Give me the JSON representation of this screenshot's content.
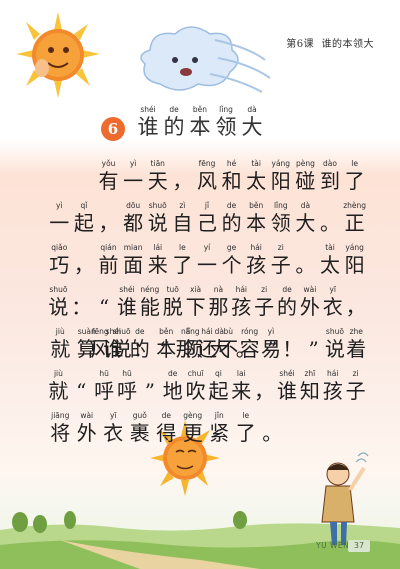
{
  "header": {
    "lesson_label": "第6课",
    "lesson_title": "谁的本领大"
  },
  "title": {
    "number": "6",
    "chars": [
      {
        "py": "shéi",
        "hz": "谁"
      },
      {
        "py": "de",
        "hz": "的"
      },
      {
        "py": "běn",
        "hz": "本"
      },
      {
        "py": "lǐng",
        "hz": "领"
      },
      {
        "py": "dà",
        "hz": "大"
      }
    ]
  },
  "paragraphs": [
    {
      "lines": [
        [
          {
            "py": "",
            "hz": ""
          },
          {
            "py": "",
            "hz": ""
          },
          {
            "py": "yǒu",
            "hz": "有"
          },
          {
            "py": "yì",
            "hz": "一"
          },
          {
            "py": "tiān",
            "hz": "天"
          },
          {
            "py": "",
            "hz": "，"
          },
          {
            "py": "fēng",
            "hz": "风"
          },
          {
            "py": "hé",
            "hz": "和"
          },
          {
            "py": "tài",
            "hz": "太"
          },
          {
            "py": "yáng",
            "hz": "阳"
          },
          {
            "py": "pèng",
            "hz": "碰"
          },
          {
            "py": "dào",
            "hz": "到"
          },
          {
            "py": "le",
            "hz": "了"
          }
        ],
        [
          {
            "py": "yì",
            "hz": "一"
          },
          {
            "py": "qǐ",
            "hz": "起"
          },
          {
            "py": "",
            "hz": "，"
          },
          {
            "py": "dōu",
            "hz": "都"
          },
          {
            "py": "shuō",
            "hz": "说"
          },
          {
            "py": "zì",
            "hz": "自"
          },
          {
            "py": "jǐ",
            "hz": "己"
          },
          {
            "py": "de",
            "hz": "的"
          },
          {
            "py": "běn",
            "hz": "本"
          },
          {
            "py": "lǐng",
            "hz": "领"
          },
          {
            "py": "dà",
            "hz": "大"
          },
          {
            "py": "",
            "hz": "。"
          },
          {
            "py": "zhèng",
            "hz": "正"
          }
        ],
        [
          {
            "py": "qiǎo",
            "hz": "巧"
          },
          {
            "py": "",
            "hz": "，"
          },
          {
            "py": "qián",
            "hz": "前"
          },
          {
            "py": "mian",
            "hz": "面"
          },
          {
            "py": "lái",
            "hz": "来"
          },
          {
            "py": "le",
            "hz": "了"
          },
          {
            "py": "yí",
            "hz": "一"
          },
          {
            "py": "ge",
            "hz": "个"
          },
          {
            "py": "hái",
            "hz": "孩"
          },
          {
            "py": "zi",
            "hz": "子"
          },
          {
            "py": "",
            "hz": "。"
          },
          {
            "py": "tài",
            "hz": "太"
          },
          {
            "py": "yáng",
            "hz": "阳"
          }
        ],
        [
          {
            "py": "shuō",
            "hz": "说"
          },
          {
            "py": "",
            "hz": "："
          },
          {
            "py": "",
            "hz": "“"
          },
          {
            "py": "shéi",
            "hz": "谁"
          },
          {
            "py": "néng",
            "hz": "能"
          },
          {
            "py": "tuō",
            "hz": "脱"
          },
          {
            "py": "xià",
            "hz": "下"
          },
          {
            "py": "nà",
            "hz": "那"
          },
          {
            "py": "hái",
            "hz": "孩"
          },
          {
            "py": "zi",
            "hz": "子"
          },
          {
            "py": "de",
            "hz": "的"
          },
          {
            "py": "wài",
            "hz": "外"
          },
          {
            "py": "yī",
            "hz": "衣"
          },
          {
            "py": "",
            "hz": "，"
          }
        ],
        [
          {
            "py": "jiù",
            "hz": "就"
          },
          {
            "py": "suàn",
            "hz": "算"
          },
          {
            "py": "shéi",
            "hz": "谁"
          },
          {
            "py": "de",
            "hz": "的"
          },
          {
            "py": "běn",
            "hz": "本"
          },
          {
            "py": "lǐng",
            "hz": "领"
          },
          {
            "py": "dà",
            "hz": "大"
          },
          {
            "py": "",
            "hz": "。"
          },
          {
            "py": "",
            "hz": "”"
          }
        ]
      ]
    },
    {
      "lines": [
        [
          {
            "py": "",
            "hz": ""
          },
          {
            "py": "",
            "hz": ""
          },
          {
            "py": "fēng",
            "hz": "风"
          },
          {
            "py": "shuō",
            "hz": "说"
          },
          {
            "py": "",
            "hz": "："
          },
          {
            "py": "",
            "hz": "“"
          },
          {
            "py": "nà",
            "hz": "那"
          },
          {
            "py": "hái",
            "hz": "还"
          },
          {
            "py": "bù",
            "hz": "不"
          },
          {
            "py": "róng",
            "hz": "容"
          },
          {
            "py": "yì",
            "hz": "易"
          },
          {
            "py": "",
            "hz": "！"
          },
          {
            "py": "",
            "hz": "”"
          },
          {
            "py": "shuō",
            "hz": "说"
          },
          {
            "py": "zhe",
            "hz": "着"
          }
        ],
        [
          {
            "py": "jiù",
            "hz": "就"
          },
          {
            "py": "",
            "hz": "“"
          },
          {
            "py": "hū",
            "hz": "呼"
          },
          {
            "py": "hū",
            "hz": "呼"
          },
          {
            "py": "",
            "hz": "”"
          },
          {
            "py": "de",
            "hz": "地"
          },
          {
            "py": "chuī",
            "hz": "吹"
          },
          {
            "py": "qi",
            "hz": "起"
          },
          {
            "py": "lai",
            "hz": "来"
          },
          {
            "py": "",
            "hz": "，"
          },
          {
            "py": "shéi",
            "hz": "谁"
          },
          {
            "py": "zhī",
            "hz": "知"
          },
          {
            "py": "hái",
            "hz": "孩"
          },
          {
            "py": "zi",
            "hz": "子"
          }
        ],
        [
          {
            "py": "jiāng",
            "hz": "将"
          },
          {
            "py": "wài",
            "hz": "外"
          },
          {
            "py": "yī",
            "hz": "衣"
          },
          {
            "py": "guǒ",
            "hz": "裹"
          },
          {
            "py": "de",
            "hz": "得"
          },
          {
            "py": "gèng",
            "hz": "更"
          },
          {
            "py": "jǐn",
            "hz": "紧"
          },
          {
            "py": "le",
            "hz": "了"
          },
          {
            "py": "",
            "hz": "。"
          }
        ]
      ]
    }
  ],
  "footer": {
    "subject": "YU WEN",
    "page_number": "37"
  },
  "colors": {
    "badge": "#ee6b2f",
    "sun": "#f5a623",
    "sun_face": "#e8542a",
    "cloud": "#bfd7f2",
    "grass": "#8fbf5a"
  }
}
